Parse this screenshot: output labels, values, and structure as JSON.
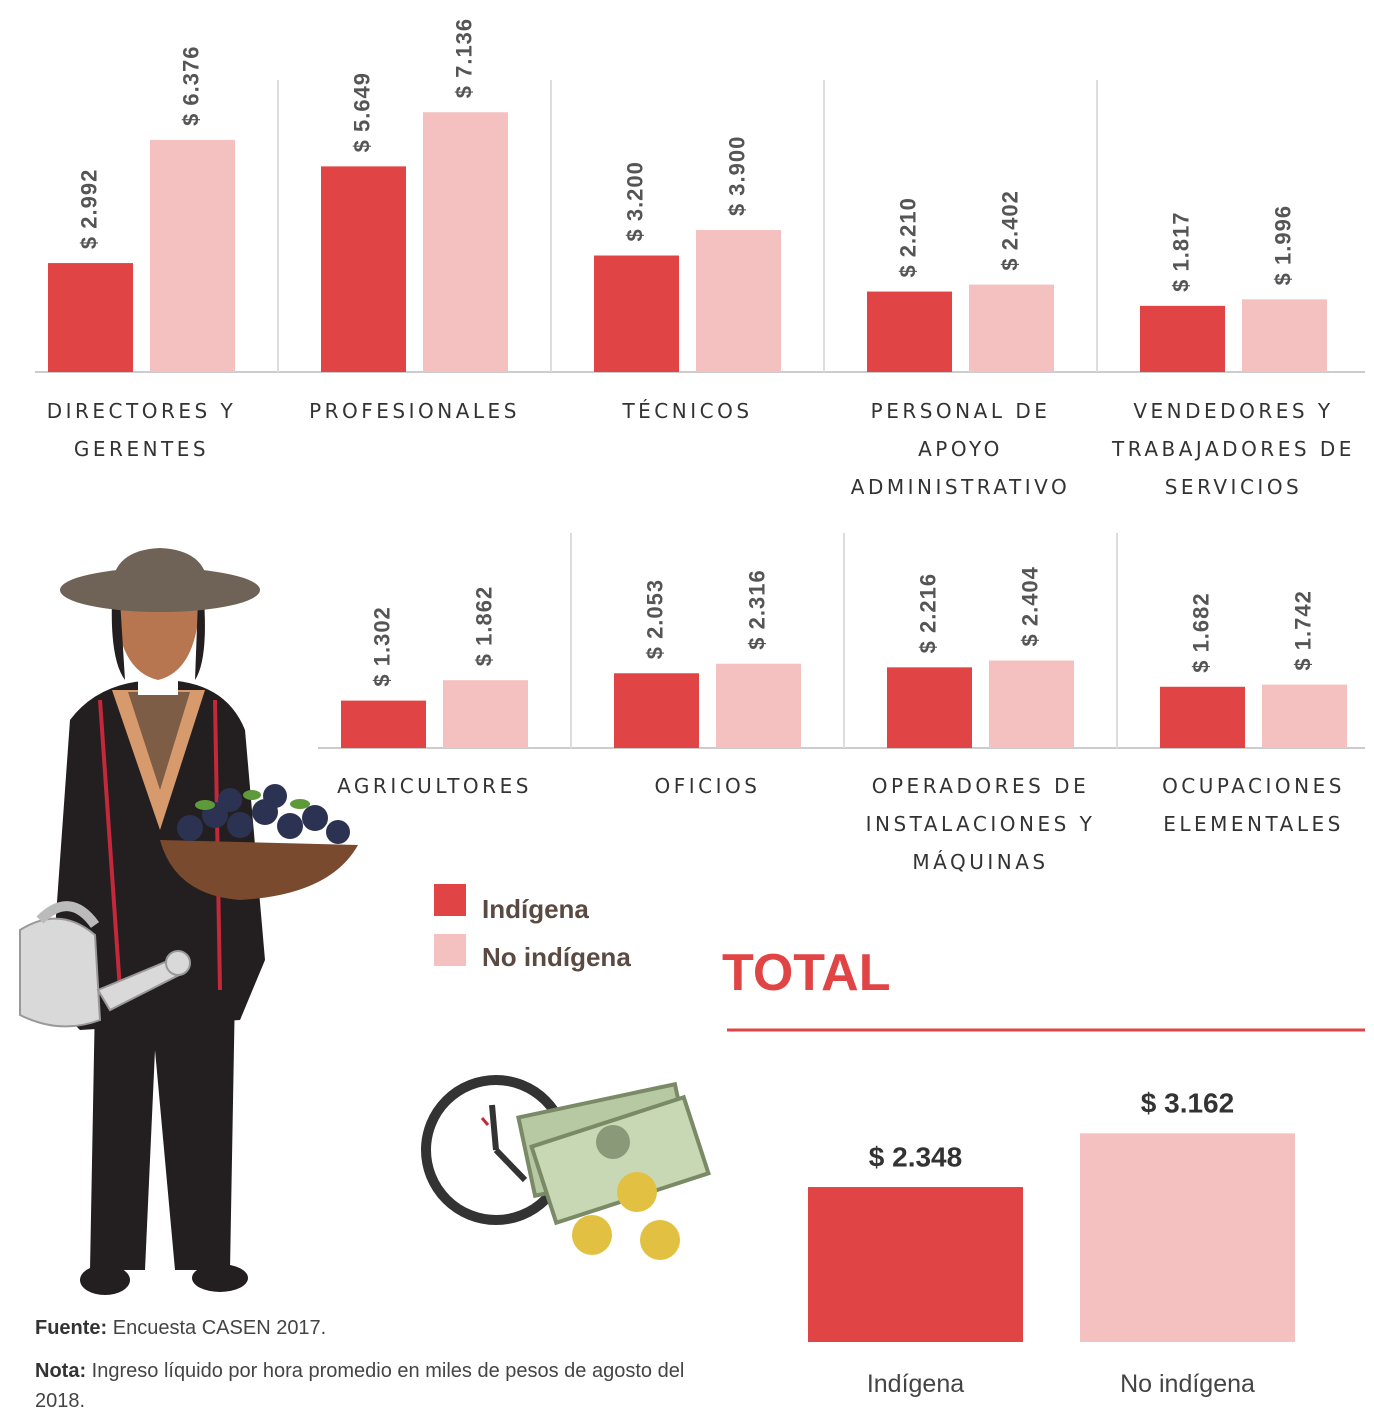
{
  "chart_data": [
    {
      "type": "bar",
      "categories": [
        "DIRECTORES Y GERENTES",
        "PROFESIONALES",
        "TÉCNICOS",
        "PERSONAL DE APOYO ADMINISTRATIVO",
        "VENDEDORES Y TRABAJADORES DE SERVICIOS"
      ],
      "series": [
        {
          "name": "Indígena",
          "color": "#e04444",
          "values": [
            2992,
            5649,
            3200,
            2210,
            1817
          ],
          "value_labels": [
            "$ 2.992",
            "$ 5.649",
            "$ 3.200",
            "$ 2.210",
            "$ 1.817"
          ]
        },
        {
          "name": "No indígena",
          "color": "#f4c1c0",
          "values": [
            6376,
            7136,
            3900,
            2402,
            1996
          ],
          "value_labels": [
            "$ 6.376",
            "$ 7.136",
            "$ 3.900",
            "$ 2.402",
            "$ 1.996"
          ]
        }
      ]
    },
    {
      "type": "bar",
      "categories": [
        "AGRICULTORES",
        "OFICIOS",
        "OPERADORES DE INSTALACIONES Y MÁQUINAS",
        "OCUPACIONES ELEMENTALES"
      ],
      "series": [
        {
          "color": "#e04444",
          "values": [
            1302,
            2053,
            2216,
            1682
          ],
          "value_labels": [
            "$ 1.302",
            "$ 2.053",
            "$ 2.216",
            "$ 1.682"
          ]
        },
        {
          "color": "#f4c1c0",
          "values": [
            1862,
            2316,
            2404,
            1742
          ],
          "value_labels": [
            "$ 1.862",
            "$ 2.316",
            "$ 2.404",
            "$ 1.742"
          ]
        }
      ]
    },
    {
      "type": "total-bar",
      "title": "TOTAL",
      "categories": [
        "Indígena",
        "No indígena"
      ],
      "colors": [
        "#e04444",
        "#f4c1c0"
      ],
      "values": [
        2348,
        3162
      ],
      "value_labels": [
        "$ 2.348",
        "$ 3.162"
      ]
    }
  ],
  "source": {
    "label": "Fuente:",
    "text": "Encuesta CASEN 2017."
  },
  "note": {
    "label": "Nota:",
    "text": "Ingreso líquido por hora promedio en miles de pesos de agosto del 2018."
  }
}
